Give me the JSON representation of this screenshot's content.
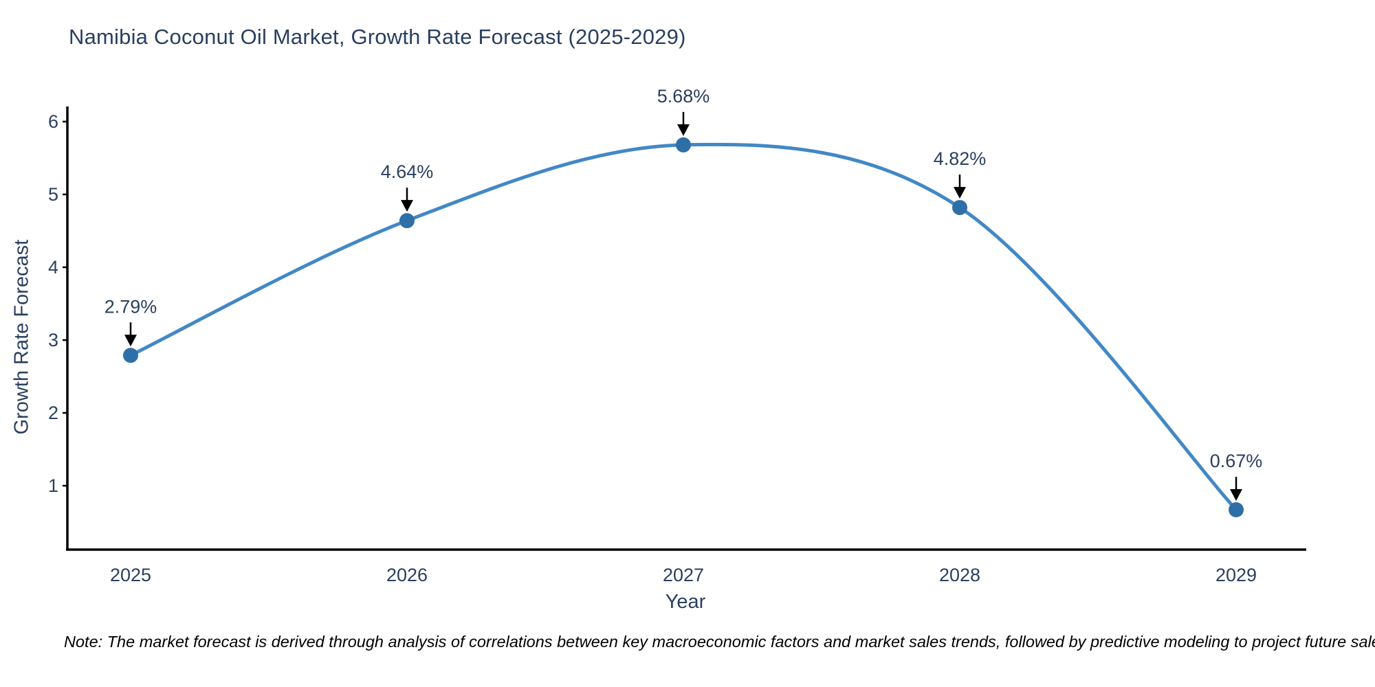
{
  "chart_data": {
    "type": "line",
    "title": "Namibia Coconut Oil Market, Growth Rate Forecast (2025-2029)",
    "categories": [
      "2025",
      "2026",
      "2027",
      "2028",
      "2029"
    ],
    "series": [
      {
        "name": "Growth Rate Forecast",
        "values": [
          2.79,
          4.64,
          5.68,
          4.82,
          0.67
        ]
      }
    ],
    "point_labels": [
      "2.79%",
      "4.64%",
      "5.68%",
      "4.82%",
      "0.67%"
    ],
    "xlabel": "Year",
    "ylabel": "Growth Rate Forecast",
    "yticks": [
      6,
      5,
      4,
      3,
      2,
      1
    ],
    "ylim": [
      0.05,
      6.22
    ],
    "grid": false,
    "legend_position": "none",
    "line_shape": "spline",
    "annotation_style": "arrow-down-to-point",
    "colors": {
      "line": "#4288c5",
      "marker": "#2f6fa8",
      "axis": "#000000",
      "text": "#2a3f5f",
      "annotation_arrow": "#000000"
    }
  },
  "note": {
    "text": "Note: The market forecast is derived through analysis of correlations between key macroeconomic factors and market sales trends, followed by predictive modeling to project future sales."
  }
}
